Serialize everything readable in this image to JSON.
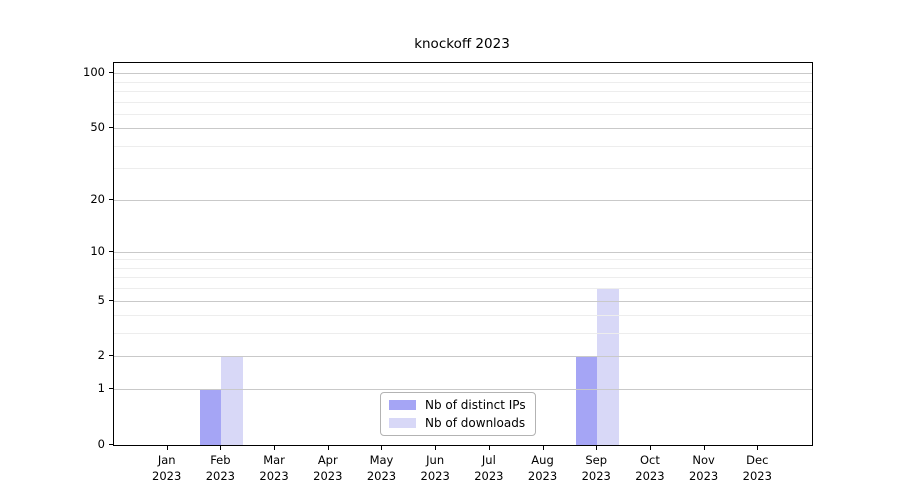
{
  "chart_data": {
    "type": "bar",
    "title": "knockoff 2023",
    "year_label": "2023",
    "categories": [
      "Jan",
      "Feb",
      "Mar",
      "Apr",
      "May",
      "Jun",
      "Jul",
      "Aug",
      "Sep",
      "Oct",
      "Nov",
      "Dec"
    ],
    "series": [
      {
        "name": "Nb of distinct IPs",
        "color": "#a5a5f5",
        "values": [
          0,
          1,
          0,
          0,
          0,
          0,
          0,
          0,
          2,
          0,
          0,
          0
        ]
      },
      {
        "name": "Nb of downloads",
        "color": "#d8d8f7",
        "values": [
          0,
          2,
          0,
          0,
          0,
          0,
          0,
          0,
          6,
          0,
          0,
          0
        ]
      }
    ],
    "y_axis": {
      "scale": "log1p",
      "ylim": [
        0,
        113.6
      ],
      "major_ticks": [
        0,
        1,
        2,
        5,
        10,
        20,
        50,
        100
      ],
      "minor_ticks": [
        3,
        4,
        6,
        7,
        8,
        9,
        30,
        40,
        60,
        70,
        80,
        90
      ],
      "grid": true,
      "grid_above_bars": true
    },
    "x_axis": {
      "tick_label_lines": 2
    },
    "legend": {
      "position": "lower-center"
    },
    "colors": {
      "grid_major": "#c9c9c9",
      "grid_minor": "#ededed",
      "spine": "#000000",
      "text": "#000000",
      "legend_border": "#b3b3b3"
    }
  }
}
